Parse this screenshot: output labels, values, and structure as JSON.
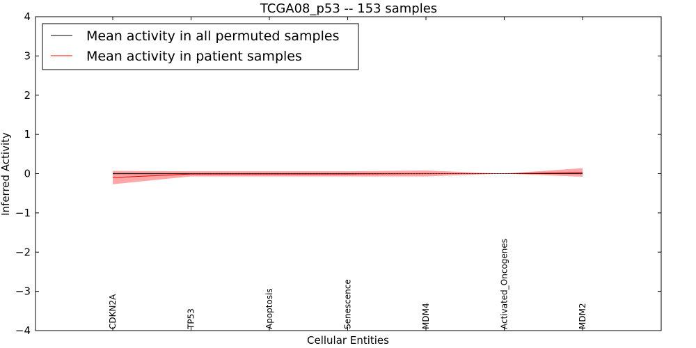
{
  "chart_data": {
    "type": "line",
    "title": "TCGA08_p53 -- 153 samples",
    "xlabel": "Cellular Entities",
    "ylabel": "Inferred Activity",
    "ylim": [
      -4,
      4
    ],
    "yticks": [
      4,
      3,
      2,
      1,
      0,
      -1,
      -2,
      -3,
      -4
    ],
    "ytick_labels": [
      "4",
      "3",
      "2",
      "1",
      "0",
      "−1",
      "−2",
      "−3",
      "−4"
    ],
    "categories": [
      "CDKN2A",
      "TP53",
      "Apoptosis",
      "Senescence",
      "MDM4",
      "Activated_Oncogenes",
      "MDM2"
    ],
    "series": [
      {
        "name": "Mean activity in all permuted samples",
        "color": "#000000",
        "values": [
          0.0,
          0.0,
          0.0,
          0.0,
          0.0,
          0.0,
          0.0
        ],
        "band_upper": [
          0.03,
          0.02,
          0.02,
          0.02,
          0.02,
          0.0,
          0.02
        ],
        "band_lower": [
          -0.03,
          -0.02,
          -0.02,
          -0.02,
          -0.02,
          0.0,
          -0.02
        ],
        "band_color": "#808080"
      },
      {
        "name": "Mean activity in patient samples",
        "color": "#ff0000",
        "values": [
          -0.1,
          -0.01,
          -0.01,
          -0.01,
          0.0,
          0.0,
          0.03
        ],
        "band_upper": [
          0.07,
          0.06,
          0.06,
          0.06,
          0.08,
          0.0,
          0.14
        ],
        "band_lower": [
          -0.27,
          -0.07,
          -0.07,
          -0.07,
          -0.07,
          0.0,
          -0.08
        ],
        "band_color": "#ff0000"
      }
    ],
    "legend": "top-left",
    "grid": false
  }
}
